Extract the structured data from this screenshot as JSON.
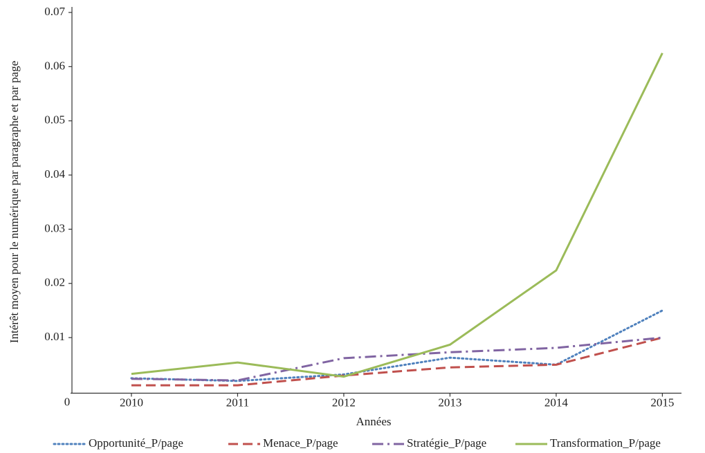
{
  "chart_data": {
    "type": "line",
    "x_label": "Années",
    "y_label": "Intérêt moyen pour le numérique par paragraphe et par page",
    "x": [
      2010,
      2011,
      2012,
      2013,
      2014,
      2015
    ],
    "xlim": [
      2009.44,
      2015.18
    ],
    "xticks": [
      2010,
      2011,
      2012,
      2013,
      2014,
      2015
    ],
    "ylim": [
      0,
      0.07
    ],
    "yticks": [
      0,
      0.01,
      0.02,
      0.03,
      0.04,
      0.05,
      0.06,
      0.07
    ],
    "grid": false,
    "legend": "bottom",
    "series": [
      {
        "name": "Opportunité_P/page",
        "color": "#4f81bd",
        "style": "dotted",
        "values": [
          0.0025,
          0.002,
          0.0032,
          0.0063,
          0.005,
          0.015
        ]
      },
      {
        "name": "Menace_P/page",
        "color": "#c0504d",
        "style": "dashed",
        "values": [
          0.0012,
          0.0012,
          0.003,
          0.0045,
          0.005,
          0.01
        ]
      },
      {
        "name": "Stratégie_P/page",
        "color": "#8064a2",
        "style": "dashdot",
        "values": [
          0.0024,
          0.0021,
          0.0062,
          0.0073,
          0.0081,
          0.01
        ]
      },
      {
        "name": "Transformation_P/page",
        "color": "#9bbb59",
        "style": "solid",
        "values": [
          0.0033,
          0.0054,
          0.0028,
          0.0087,
          0.0224,
          0.0625
        ]
      }
    ]
  }
}
